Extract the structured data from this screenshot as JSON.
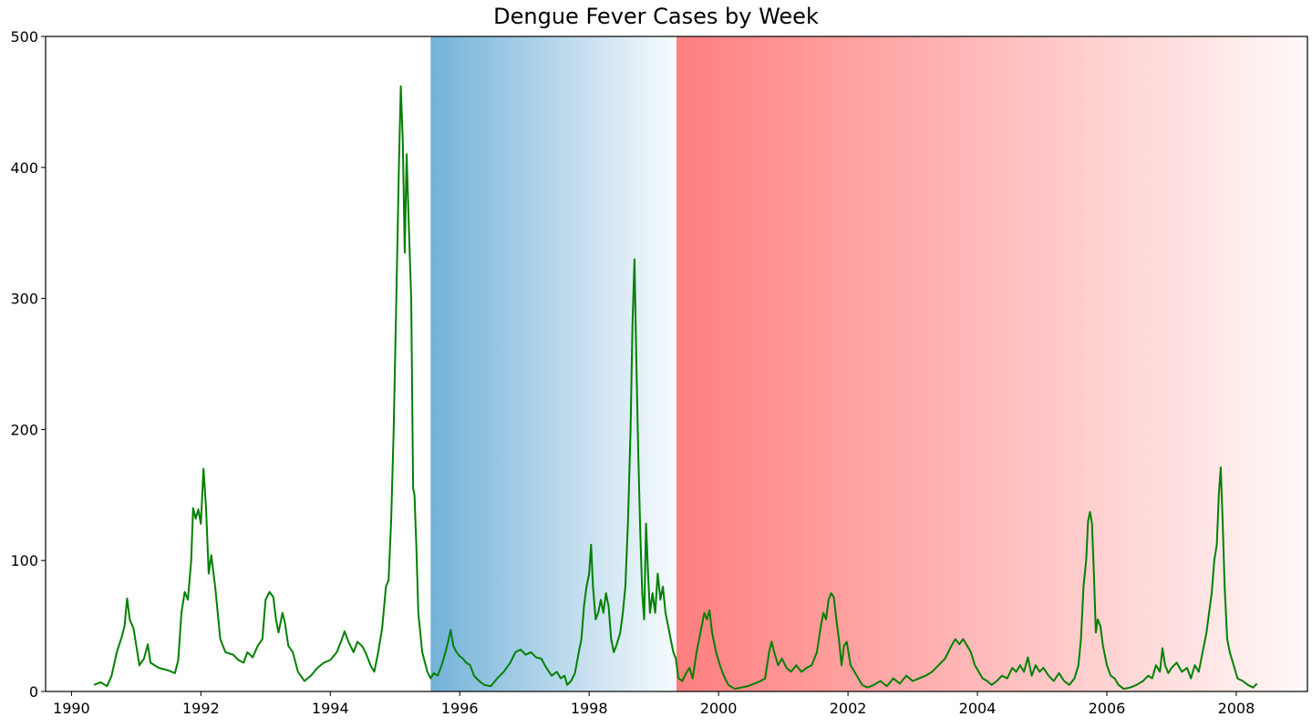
{
  "chart_data": {
    "type": "line",
    "title": "Dengue Fever Cases by Week",
    "xlabel": "",
    "ylabel": "",
    "xlim": [
      1989.6,
      2009.1
    ],
    "ylim": [
      0,
      500
    ],
    "x_ticks": [
      1990,
      1992,
      1994,
      1996,
      1998,
      2000,
      2002,
      2004,
      2006,
      2008
    ],
    "x_tick_labels": [
      "1990",
      "1992",
      "1994",
      "1996",
      "1998",
      "2000",
      "2002",
      "2004",
      "2006",
      "2008"
    ],
    "y_ticks": [
      0,
      100,
      200,
      300,
      400,
      500
    ],
    "y_tick_labels": [
      "0",
      "100",
      "200",
      "300",
      "400",
      "500"
    ],
    "grid": false,
    "shaded_regions": [
      {
        "name": "blue-gradient-region",
        "x_start": 1995.55,
        "x_end": 1999.35,
        "color": "#6baed6",
        "from_opacity": 0.95,
        "to_opacity": 0.05
      },
      {
        "name": "red-gradient-region",
        "x_start": 1999.35,
        "x_end": 2009.1,
        "color": "#ff7f7f",
        "from_opacity": 1.0,
        "to_opacity": 0.05
      }
    ],
    "series": [
      {
        "name": "weekly cases",
        "color": "#008000",
        "points": [
          [
            1990.35,
            5
          ],
          [
            1990.45,
            7
          ],
          [
            1990.55,
            4
          ],
          [
            1990.62,
            12
          ],
          [
            1990.7,
            30
          ],
          [
            1990.78,
            42
          ],
          [
            1990.82,
            50
          ],
          [
            1990.86,
            71
          ],
          [
            1990.9,
            55
          ],
          [
            1990.96,
            48
          ],
          [
            1991.05,
            20
          ],
          [
            1991.12,
            25
          ],
          [
            1991.18,
            36
          ],
          [
            1991.22,
            22
          ],
          [
            1991.35,
            18
          ],
          [
            1991.5,
            16
          ],
          [
            1991.6,
            14
          ],
          [
            1991.65,
            24
          ],
          [
            1991.7,
            60
          ],
          [
            1991.75,
            76
          ],
          [
            1991.8,
            70
          ],
          [
            1991.85,
            100
          ],
          [
            1991.88,
            140
          ],
          [
            1991.92,
            132
          ],
          [
            1991.96,
            139
          ],
          [
            1992.0,
            128
          ],
          [
            1992.04,
            170
          ],
          [
            1992.08,
            140
          ],
          [
            1992.12,
            90
          ],
          [
            1992.16,
            104
          ],
          [
            1992.22,
            80
          ],
          [
            1992.26,
            60
          ],
          [
            1992.3,
            40
          ],
          [
            1992.38,
            30
          ],
          [
            1992.5,
            28
          ],
          [
            1992.58,
            24
          ],
          [
            1992.66,
            22
          ],
          [
            1992.72,
            30
          ],
          [
            1992.8,
            26
          ],
          [
            1992.88,
            35
          ],
          [
            1992.95,
            40
          ],
          [
            1993.0,
            70
          ],
          [
            1993.06,
            76
          ],
          [
            1993.12,
            72
          ],
          [
            1993.16,
            55
          ],
          [
            1993.2,
            45
          ],
          [
            1993.26,
            60
          ],
          [
            1993.3,
            52
          ],
          [
            1993.35,
            35
          ],
          [
            1993.42,
            30
          ],
          [
            1993.5,
            15
          ],
          [
            1993.6,
            8
          ],
          [
            1993.7,
            12
          ],
          [
            1993.8,
            18
          ],
          [
            1993.9,
            22
          ],
          [
            1994.0,
            24
          ],
          [
            1994.1,
            30
          ],
          [
            1994.18,
            40
          ],
          [
            1994.22,
            46
          ],
          [
            1994.28,
            38
          ],
          [
            1994.36,
            30
          ],
          [
            1994.42,
            38
          ],
          [
            1994.5,
            34
          ],
          [
            1994.56,
            28
          ],
          [
            1994.62,
            20
          ],
          [
            1994.68,
            15
          ],
          [
            1994.74,
            30
          ],
          [
            1994.8,
            48
          ],
          [
            1994.86,
            80
          ],
          [
            1994.9,
            85
          ],
          [
            1994.94,
            130
          ],
          [
            1994.98,
            200
          ],
          [
            1995.02,
            300
          ],
          [
            1995.06,
            400
          ],
          [
            1995.09,
            462
          ],
          [
            1995.12,
            420
          ],
          [
            1995.15,
            335
          ],
          [
            1995.18,
            410
          ],
          [
            1995.21,
            360
          ],
          [
            1995.25,
            300
          ],
          [
            1995.28,
            155
          ],
          [
            1995.3,
            150
          ],
          [
            1995.33,
            110
          ],
          [
            1995.36,
            60
          ],
          [
            1995.42,
            30
          ],
          [
            1995.5,
            15
          ],
          [
            1995.55,
            10
          ],
          [
            1995.6,
            14
          ],
          [
            1995.66,
            12
          ],
          [
            1995.72,
            20
          ],
          [
            1995.78,
            30
          ],
          [
            1995.82,
            38
          ],
          [
            1995.86,
            47
          ],
          [
            1995.9,
            35
          ],
          [
            1995.95,
            30
          ],
          [
            1996.0,
            27
          ],
          [
            1996.05,
            25
          ],
          [
            1996.1,
            22
          ],
          [
            1996.16,
            20
          ],
          [
            1996.22,
            12
          ],
          [
            1996.3,
            8
          ],
          [
            1996.38,
            5
          ],
          [
            1996.48,
            4
          ],
          [
            1996.58,
            10
          ],
          [
            1996.68,
            15
          ],
          [
            1996.78,
            22
          ],
          [
            1996.86,
            30
          ],
          [
            1996.94,
            32
          ],
          [
            1997.02,
            28
          ],
          [
            1997.1,
            30
          ],
          [
            1997.18,
            26
          ],
          [
            1997.26,
            25
          ],
          [
            1997.34,
            18
          ],
          [
            1997.42,
            12
          ],
          [
            1997.5,
            15
          ],
          [
            1997.56,
            10
          ],
          [
            1997.62,
            12
          ],
          [
            1997.66,
            5
          ],
          [
            1997.72,
            8
          ],
          [
            1997.78,
            14
          ],
          [
            1997.84,
            30
          ],
          [
            1997.88,
            40
          ],
          [
            1997.92,
            65
          ],
          [
            1997.96,
            80
          ],
          [
            1998.0,
            90
          ],
          [
            1998.03,
            112
          ],
          [
            1998.06,
            80
          ],
          [
            1998.1,
            55
          ],
          [
            1998.14,
            60
          ],
          [
            1998.18,
            70
          ],
          [
            1998.22,
            60
          ],
          [
            1998.26,
            75
          ],
          [
            1998.3,
            65
          ],
          [
            1998.34,
            40
          ],
          [
            1998.38,
            30
          ],
          [
            1998.42,
            35
          ],
          [
            1998.48,
            45
          ],
          [
            1998.52,
            60
          ],
          [
            1998.56,
            80
          ],
          [
            1998.6,
            130
          ],
          [
            1998.64,
            200
          ],
          [
            1998.67,
            280
          ],
          [
            1998.7,
            330
          ],
          [
            1998.73,
            250
          ],
          [
            1998.76,
            180
          ],
          [
            1998.79,
            120
          ],
          [
            1998.82,
            75
          ],
          [
            1998.85,
            55
          ],
          [
            1998.88,
            128
          ],
          [
            1998.91,
            90
          ],
          [
            1998.94,
            60
          ],
          [
            1998.98,
            75
          ],
          [
            1999.02,
            60
          ],
          [
            1999.06,
            90
          ],
          [
            1999.1,
            70
          ],
          [
            1999.14,
            80
          ],
          [
            1999.18,
            60
          ],
          [
            1999.22,
            50
          ],
          [
            1999.26,
            40
          ],
          [
            1999.3,
            30
          ],
          [
            1999.34,
            25
          ],
          [
            1999.38,
            10
          ],
          [
            1999.44,
            8
          ],
          [
            1999.5,
            14
          ],
          [
            1999.55,
            18
          ],
          [
            1999.6,
            10
          ],
          [
            1999.66,
            30
          ],
          [
            1999.7,
            40
          ],
          [
            1999.74,
            50
          ],
          [
            1999.78,
            60
          ],
          [
            1999.82,
            55
          ],
          [
            1999.86,
            62
          ],
          [
            1999.9,
            45
          ],
          [
            1999.96,
            30
          ],
          [
            2000.02,
            20
          ],
          [
            2000.08,
            12
          ],
          [
            2000.15,
            5
          ],
          [
            2000.25,
            2
          ],
          [
            2000.35,
            3
          ],
          [
            2000.45,
            4
          ],
          [
            2000.55,
            6
          ],
          [
            2000.65,
            8
          ],
          [
            2000.72,
            10
          ],
          [
            2000.78,
            30
          ],
          [
            2000.82,
            38
          ],
          [
            2000.86,
            30
          ],
          [
            2000.92,
            20
          ],
          [
            2000.98,
            25
          ],
          [
            2001.05,
            18
          ],
          [
            2001.12,
            15
          ],
          [
            2001.2,
            20
          ],
          [
            2001.28,
            15
          ],
          [
            2001.36,
            18
          ],
          [
            2001.44,
            20
          ],
          [
            2001.52,
            30
          ],
          [
            2001.58,
            50
          ],
          [
            2001.62,
            60
          ],
          [
            2001.66,
            55
          ],
          [
            2001.7,
            70
          ],
          [
            2001.74,
            75
          ],
          [
            2001.78,
            72
          ],
          [
            2001.82,
            55
          ],
          [
            2001.86,
            40
          ],
          [
            2001.9,
            20
          ],
          [
            2001.94,
            35
          ],
          [
            2001.98,
            38
          ],
          [
            2002.04,
            20
          ],
          [
            2002.1,
            15
          ],
          [
            2002.16,
            10
          ],
          [
            2002.22,
            5
          ],
          [
            2002.3,
            3
          ],
          [
            2002.4,
            5
          ],
          [
            2002.5,
            8
          ],
          [
            2002.6,
            4
          ],
          [
            2002.7,
            10
          ],
          [
            2002.8,
            6
          ],
          [
            2002.9,
            12
          ],
          [
            2003.0,
            8
          ],
          [
            2003.1,
            10
          ],
          [
            2003.2,
            12
          ],
          [
            2003.3,
            15
          ],
          [
            2003.4,
            20
          ],
          [
            2003.5,
            25
          ],
          [
            2003.6,
            35
          ],
          [
            2003.66,
            40
          ],
          [
            2003.72,
            36
          ],
          [
            2003.78,
            40
          ],
          [
            2003.84,
            35
          ],
          [
            2003.9,
            30
          ],
          [
            2003.96,
            20
          ],
          [
            2004.02,
            15
          ],
          [
            2004.08,
            10
          ],
          [
            2004.15,
            8
          ],
          [
            2004.22,
            5
          ],
          [
            2004.3,
            8
          ],
          [
            2004.38,
            12
          ],
          [
            2004.46,
            10
          ],
          [
            2004.54,
            18
          ],
          [
            2004.6,
            15
          ],
          [
            2004.66,
            20
          ],
          [
            2004.72,
            15
          ],
          [
            2004.78,
            26
          ],
          [
            2004.84,
            12
          ],
          [
            2004.9,
            20
          ],
          [
            2004.96,
            15
          ],
          [
            2005.02,
            18
          ],
          [
            2005.1,
            12
          ],
          [
            2005.18,
            8
          ],
          [
            2005.26,
            14
          ],
          [
            2005.34,
            8
          ],
          [
            2005.42,
            5
          ],
          [
            2005.5,
            10
          ],
          [
            2005.56,
            20
          ],
          [
            2005.6,
            40
          ],
          [
            2005.64,
            80
          ],
          [
            2005.68,
            100
          ],
          [
            2005.71,
            130
          ],
          [
            2005.74,
            137
          ],
          [
            2005.77,
            128
          ],
          [
            2005.8,
            90
          ],
          [
            2005.83,
            45
          ],
          [
            2005.86,
            55
          ],
          [
            2005.9,
            50
          ],
          [
            2005.94,
            35
          ],
          [
            2006.0,
            20
          ],
          [
            2006.06,
            12
          ],
          [
            2006.12,
            10
          ],
          [
            2006.18,
            5
          ],
          [
            2006.26,
            2
          ],
          [
            2006.36,
            3
          ],
          [
            2006.46,
            5
          ],
          [
            2006.56,
            8
          ],
          [
            2006.64,
            12
          ],
          [
            2006.7,
            10
          ],
          [
            2006.76,
            20
          ],
          [
            2006.82,
            15
          ],
          [
            2006.86,
            33
          ],
          [
            2006.9,
            20
          ],
          [
            2006.95,
            14
          ],
          [
            2007.0,
            18
          ],
          [
            2007.08,
            22
          ],
          [
            2007.16,
            15
          ],
          [
            2007.24,
            18
          ],
          [
            2007.3,
            10
          ],
          [
            2007.36,
            20
          ],
          [
            2007.42,
            15
          ],
          [
            2007.48,
            30
          ],
          [
            2007.54,
            45
          ],
          [
            2007.58,
            60
          ],
          [
            2007.62,
            75
          ],
          [
            2007.66,
            100
          ],
          [
            2007.7,
            112
          ],
          [
            2007.73,
            150
          ],
          [
            2007.76,
            171
          ],
          [
            2007.79,
            130
          ],
          [
            2007.82,
            80
          ],
          [
            2007.86,
            40
          ],
          [
            2007.9,
            30
          ],
          [
            2007.96,
            20
          ],
          [
            2008.02,
            10
          ],
          [
            2008.1,
            8
          ],
          [
            2008.18,
            5
          ],
          [
            2008.26,
            3
          ],
          [
            2008.32,
            6
          ]
        ]
      }
    ]
  }
}
